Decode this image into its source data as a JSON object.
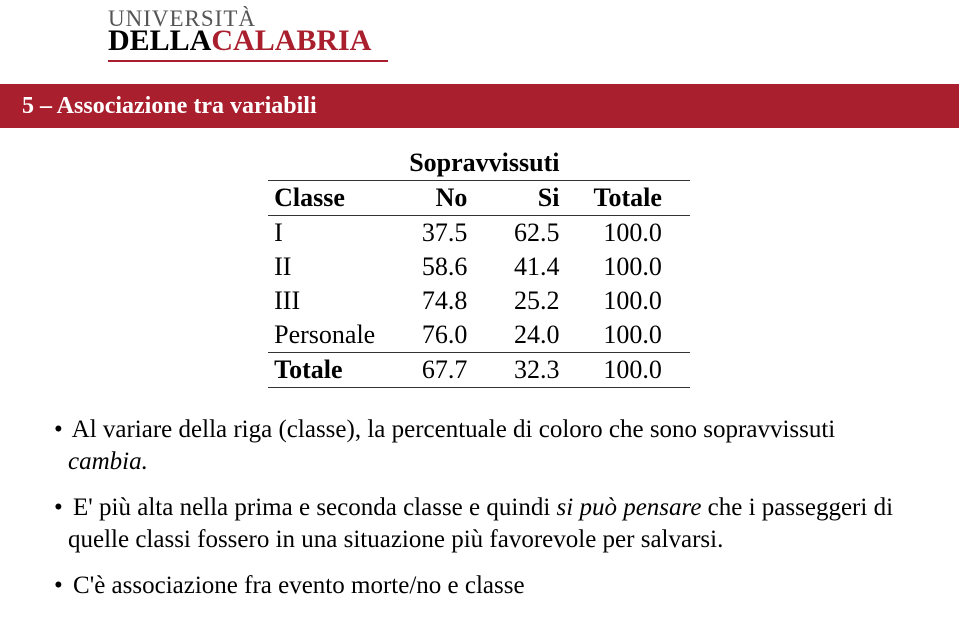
{
  "logo": {
    "top_prefix": "UNIVERSITÀ",
    "bottom_black": "DELLA",
    "bottom_red": "CALABRIA",
    "top_color": "#555555",
    "red": "#a91f2e"
  },
  "header": {
    "title": "5 – Associazione tra variabili",
    "bg_color": "#a91f2e",
    "text_color": "#ffffff"
  },
  "table": {
    "super_header": "Sopravvissuti",
    "columns": [
      "Classe",
      "No",
      "Si",
      "Totale"
    ],
    "rows": [
      [
        "I",
        "37.5",
        "62.5",
        "100.0"
      ],
      [
        "II",
        "58.6",
        "41.4",
        "100.0"
      ],
      [
        "III",
        "74.8",
        "25.2",
        "100.0"
      ],
      [
        "Personale",
        "76.0",
        "24.0",
        "100.0"
      ],
      [
        "Totale",
        "67.7",
        "32.3",
        "100.0"
      ]
    ],
    "border_color": "#333333",
    "font_size_pt": 20,
    "cell_align_first": "left",
    "cell_align_num": "right"
  },
  "bullets": {
    "b1_prefix": "Al variare della riga (classe), la percentuale di coloro che sono sopravvissuti ",
    "b1_italic": "cambia.",
    "b2_prefix": "E' più alta nella prima e seconda classe e quindi ",
    "b2_italic": "si può pensare",
    "b2_suffix": " che i passeggeri di quelle classi fossero in una situazione più favorevole per salvarsi.",
    "b3": "C'è associazione fra evento morte/no e classe"
  }
}
